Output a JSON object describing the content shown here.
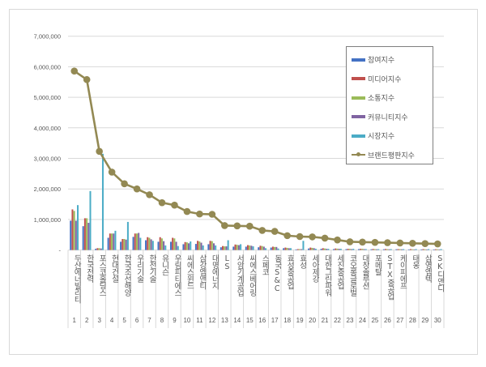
{
  "chart_data": {
    "type": "bar",
    "title": "",
    "xlabel": "",
    "ylabel": "",
    "ylim": [
      0,
      7000000
    ],
    "yticks": [
      "-",
      "1,000,000",
      "2,000,000",
      "3,000,000",
      "4,000,000",
      "5,000,000",
      "6,000,000",
      "7,000,000"
    ],
    "grid": true,
    "legend_position": "upper-right-inside",
    "categories": [
      "두산에너빌리티",
      "한국전력",
      "포스코홀딩스",
      "현대건설",
      "한국조선해양",
      "우리기술",
      "한전기술",
      "유니슨",
      "우림피티에스",
      "씨에스윈드",
      "삼강엠앤티",
      "대명에너지",
      "LS",
      "서암기계공업",
      "씨에스베어링",
      "스페코",
      "동국S&C",
      "효성중공업",
      "효성",
      "세아제강",
      "대한그린파워",
      "세진중공업",
      "코오롱글로벌",
      "대창솔루션",
      "포메탈",
      "STX중공업",
      "케이피에프",
      "태웅",
      "삼영엠텍",
      "SK디앤디"
    ],
    "ranks": [
      "1",
      "2",
      "3",
      "4",
      "5",
      "6",
      "7",
      "8",
      "9",
      "10",
      "11",
      "12",
      "13",
      "14",
      "15",
      "16",
      "17",
      "18",
      "19",
      "20",
      "21",
      "22",
      "23",
      "24",
      "25",
      "26",
      "27",
      "28",
      "29",
      "30"
    ],
    "series": [
      {
        "name": "참여지수",
        "type": "bar",
        "color": "#4472c4",
        "values": [
          960000,
          780000,
          40000,
          400000,
          270000,
          430000,
          320000,
          270000,
          270000,
          190000,
          200000,
          190000,
          90000,
          110000,
          110000,
          90000,
          80000,
          60000,
          20000,
          50000,
          40000,
          30000,
          30000,
          30000,
          25000,
          25000,
          25000,
          20000,
          20000,
          20000
        ]
      },
      {
        "name": "미디어지수",
        "type": "bar",
        "color": "#c0504d",
        "values": [
          1330000,
          1040000,
          60000,
          540000,
          360000,
          540000,
          420000,
          420000,
          400000,
          260000,
          300000,
          300000,
          130000,
          180000,
          160000,
          140000,
          110000,
          80000,
          30000,
          80000,
          60000,
          50000,
          40000,
          40000,
          35000,
          35000,
          30000,
          30000,
          30000,
          25000
        ]
      },
      {
        "name": "소통지수",
        "type": "bar",
        "color": "#9bbb59",
        "values": [
          1280000,
          1040000,
          60000,
          540000,
          360000,
          540000,
          400000,
          380000,
          380000,
          250000,
          280000,
          290000,
          120000,
          170000,
          150000,
          130000,
          100000,
          70000,
          30000,
          70000,
          50000,
          45000,
          40000,
          40000,
          30000,
          30000,
          30000,
          25000,
          25000,
          25000
        ]
      },
      {
        "name": "커뮤니티지수",
        "type": "bar",
        "color": "#8064a2",
        "values": [
          960000,
          890000,
          50000,
          540000,
          340000,
          560000,
          350000,
          290000,
          270000,
          220000,
          240000,
          220000,
          120000,
          160000,
          140000,
          110000,
          100000,
          60000,
          30000,
          60000,
          40000,
          40000,
          30000,
          30000,
          25000,
          25000,
          25000,
          20000,
          20000,
          20000
        ]
      },
      {
        "name": "시장지수",
        "type": "bar",
        "color": "#4bacc6",
        "values": [
          1470000,
          1930000,
          3150000,
          630000,
          920000,
          400000,
          300000,
          150000,
          130000,
          280000,
          150000,
          150000,
          320000,
          190000,
          120000,
          60000,
          50000,
          60000,
          300000,
          40000,
          40000,
          40000,
          40000,
          30000,
          30000,
          30000,
          30000,
          30000,
          30000,
          30000
        ]
      },
      {
        "name": "브랜드평판지수",
        "type": "line",
        "color": "#938953",
        "values": [
          5860000,
          5580000,
          3230000,
          2550000,
          2170000,
          2000000,
          1810000,
          1550000,
          1470000,
          1260000,
          1180000,
          1170000,
          800000,
          790000,
          780000,
          640000,
          610000,
          470000,
          440000,
          430000,
          390000,
          330000,
          270000,
          260000,
          250000,
          240000,
          230000,
          220000,
          210000,
          200000
        ]
      }
    ]
  }
}
